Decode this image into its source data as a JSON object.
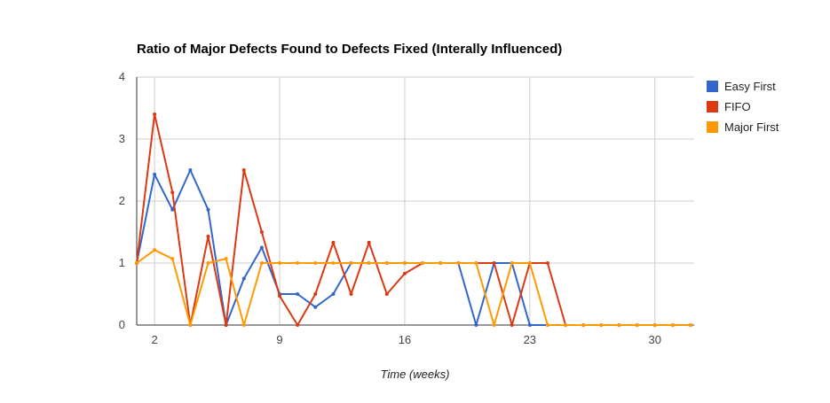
{
  "chart_data": {
    "type": "line",
    "title": "Ratio of Major Defects Found to Defects Fixed (Interally Influenced)",
    "xlabel": "Time (weeks)",
    "ylabel": "",
    "xlim": [
      1.0,
      32.2
    ],
    "ylim": [
      0,
      4
    ],
    "x_ticks": [
      2,
      9,
      16,
      23,
      30
    ],
    "y_ticks": [
      0,
      1,
      2,
      3,
      4
    ],
    "grid": true,
    "legend_position": "right",
    "x": [
      1,
      2,
      3,
      4,
      5,
      6,
      7,
      8,
      9,
      10,
      11,
      12,
      13,
      14,
      15,
      16,
      17,
      18,
      19,
      20,
      21,
      22,
      23,
      24,
      25,
      26,
      27,
      28,
      29,
      30,
      31,
      32
    ],
    "series": [
      {
        "name": "Easy First",
        "color": "#3366cc",
        "values": [
          1.0,
          2.43,
          1.86,
          2.5,
          1.86,
          0.0,
          0.75,
          1.25,
          0.5,
          0.5,
          0.29,
          0.5,
          1.0,
          1.0,
          1.0,
          1.0,
          1.0,
          1.0,
          1.0,
          0.0,
          1.0,
          1.0,
          0.0,
          0.0,
          0.0,
          0.0,
          0.0,
          0.0,
          0.0,
          0.0,
          0.0,
          0.0
        ]
      },
      {
        "name": "FIFO",
        "color": "#dc3912",
        "values": [
          1.0,
          3.4,
          2.14,
          0.0,
          1.43,
          0.0,
          2.5,
          1.5,
          0.47,
          0.0,
          0.5,
          1.33,
          0.5,
          1.33,
          0.5,
          0.83,
          1.0,
          1.0,
          1.0,
          1.0,
          1.0,
          0.0,
          1.0,
          1.0,
          0.0,
          0.0,
          0.0,
          0.0,
          0.0,
          0.0,
          0.0,
          0.0
        ]
      },
      {
        "name": "Major First",
        "color": "#ff9900",
        "values": [
          1.0,
          1.21,
          1.07,
          0.0,
          1.0,
          1.07,
          0.0,
          1.0,
          1.0,
          1.0,
          1.0,
          1.0,
          1.0,
          1.0,
          1.0,
          1.0,
          1.0,
          1.0,
          1.0,
          1.0,
          0.0,
          1.0,
          1.0,
          0.0,
          0.0,
          0.0,
          0.0,
          0.0,
          0.0,
          0.0,
          0.0,
          0.0
        ]
      }
    ]
  }
}
